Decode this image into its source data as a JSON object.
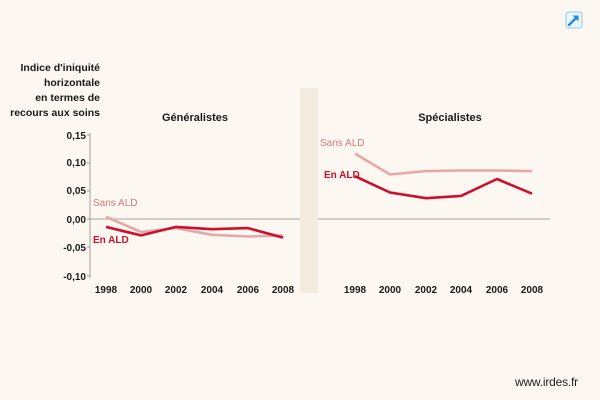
{
  "ylabel_lines": [
    "Indice d'iniquité",
    "horizontale",
    "en termes de",
    "recours aux soins"
  ],
  "source": "www.irdes.fr",
  "icons": {
    "expand": "expand-arrow-icon"
  },
  "colors": {
    "background": "#fcf8f1",
    "panel_separator": "#f3ebdf",
    "axis": "#8a8a8a",
    "en_ald": "#cc0e2f",
    "sans_ald": "#e4a9a7",
    "sans_ald_label": "#d9777b",
    "icon": "#1f8fd3"
  },
  "chart_data": [
    {
      "type": "line",
      "title": "Généralistes",
      "ylabel": "Indice d'iniquité horizontale en termes de recours aux soins",
      "x": [
        1998,
        2000,
        2002,
        2004,
        2006,
        2008
      ],
      "ylim": [
        -0.1,
        0.15
      ],
      "yticks": [
        "0,15",
        "0,10",
        "0,05",
        "0,00",
        "-0,05",
        "-0,10"
      ],
      "grid": false,
      "series": [
        {
          "name": "Sans ALD",
          "values": [
            0.005,
            -0.022,
            -0.015,
            -0.027,
            -0.03,
            -0.028
          ]
        },
        {
          "name": "En ALD",
          "values": [
            -0.013,
            -0.028,
            -0.013,
            -0.017,
            -0.015,
            -0.032
          ]
        }
      ]
    },
    {
      "type": "line",
      "title": "Spécialistes",
      "x": [
        1998,
        2000,
        2002,
        2004,
        2006,
        2008
      ],
      "ylim": [
        -0.1,
        0.15
      ],
      "grid": false,
      "series": [
        {
          "name": "Sans ALD",
          "values": [
            0.117,
            0.08,
            0.086,
            0.087,
            0.087,
            0.086
          ]
        },
        {
          "name": "En ALD",
          "values": [
            0.077,
            0.048,
            0.038,
            0.042,
            0.072,
            0.046
          ]
        }
      ]
    }
  ]
}
